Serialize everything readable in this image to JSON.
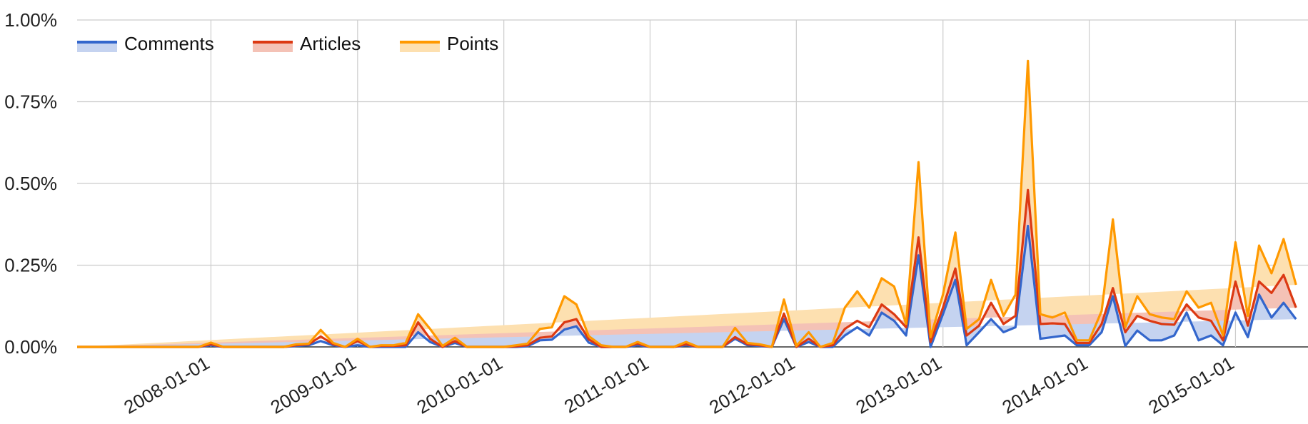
{
  "chart_data": {
    "type": "area",
    "stacked": true,
    "grid": true,
    "legend_position": "top-left",
    "x_tick_labels": [
      "2008-01-01",
      "2009-01-01",
      "2010-01-01",
      "2011-01-01",
      "2012-01-01",
      "2013-01-01",
      "2014-01-01",
      "2015-01-01"
    ],
    "y_tick_labels": [
      "0.00%",
      "0.25%",
      "0.50%",
      "0.75%",
      "1.00%"
    ],
    "y_ticks": [
      0,
      0.25,
      0.5,
      0.75,
      1.0
    ],
    "ylim": [
      0,
      1.0
    ],
    "xlim": [
      "2007-02-01",
      "2015-07-01"
    ],
    "x": [
      "2007-02-01",
      "2007-03-01",
      "2007-04-01",
      "2007-05-01",
      "2007-06-01",
      "2007-07-01",
      "2007-08-01",
      "2007-09-01",
      "2007-10-01",
      "2007-11-01",
      "2007-12-01",
      "2008-01-01",
      "2008-02-01",
      "2008-03-01",
      "2008-04-01",
      "2008-05-01",
      "2008-06-01",
      "2008-07-01",
      "2008-08-01",
      "2008-09-01",
      "2008-10-01",
      "2008-11-01",
      "2008-12-01",
      "2009-01-01",
      "2009-02-01",
      "2009-03-01",
      "2009-04-01",
      "2009-05-01",
      "2009-06-01",
      "2009-07-01",
      "2009-08-01",
      "2009-09-01",
      "2009-10-01",
      "2009-11-01",
      "2009-12-01",
      "2010-01-01",
      "2010-02-01",
      "2010-03-01",
      "2010-04-01",
      "2010-05-01",
      "2010-06-01",
      "2010-07-01",
      "2010-08-01",
      "2010-09-01",
      "2010-10-01",
      "2010-11-01",
      "2010-12-01",
      "2011-01-01",
      "2011-02-01",
      "2011-03-01",
      "2011-04-01",
      "2011-05-01",
      "2011-06-01",
      "2011-07-01",
      "2011-08-01",
      "2011-09-01",
      "2011-10-01",
      "2011-11-01",
      "2011-12-01",
      "2012-01-01",
      "2012-02-01",
      "2012-03-01",
      "2012-04-01",
      "2012-05-01",
      "2012-06-01",
      "2012-07-01",
      "2012-08-01",
      "2012-09-01",
      "2012-10-01",
      "2012-11-01",
      "2012-12-01",
      "2013-01-01",
      "2013-02-01",
      "2013-03-01",
      "2013-04-01",
      "2013-05-01",
      "2013-06-01",
      "2013-07-01",
      "2013-08-01",
      "2013-09-01",
      "2013-10-01",
      "2013-11-01",
      "2013-12-01",
      "2014-01-01",
      "2014-02-01",
      "2014-03-01",
      "2014-04-01",
      "2014-05-01",
      "2014-06-01",
      "2014-07-01",
      "2014-08-01",
      "2014-09-01",
      "2014-10-01",
      "2014-11-01",
      "2014-12-01",
      "2015-01-01",
      "2015-02-01",
      "2015-03-01",
      "2015-04-01",
      "2015-05-01",
      "2015-06-01",
      "2015-07-01"
    ],
    "series": [
      {
        "name": "Comments",
        "color": "#3366cc",
        "fill": "#c5d3f0",
        "cumulative_values": [
          0,
          0,
          0,
          0,
          0,
          0,
          0,
          0,
          0,
          0,
          0,
          0.005,
          0,
          0,
          0,
          0,
          0,
          0,
          0.003,
          0.005,
          0.018,
          0.005,
          0,
          0.005,
          0,
          0,
          0,
          0,
          0.045,
          0.015,
          0,
          0.012,
          0,
          0,
          0,
          0,
          0,
          0.002,
          0.02,
          0.022,
          0.053,
          0.063,
          0.013,
          0,
          0,
          0,
          0.005,
          0,
          0,
          0,
          0.005,
          0,
          0,
          0,
          0.025,
          0.005,
          0.003,
          0,
          0.085,
          0,
          0.015,
          0,
          0,
          0.035,
          0.06,
          0.035,
          0.105,
          0.08,
          0.035,
          0.28,
          0,
          0.1,
          0.205,
          0.005,
          0.045,
          0.085,
          0.045,
          0.06,
          0.37,
          0.025,
          0.03,
          0.035,
          0.005,
          0.005,
          0.045,
          0.155,
          0.003,
          0.05,
          0.02,
          0.02,
          0.035,
          0.105,
          0.02,
          0.035,
          0.005,
          0.105,
          0.03,
          0.16,
          0.09,
          0.135,
          0.085
        ]
      },
      {
        "name": "Articles",
        "color": "#dc3912",
        "fill": "#f4c2b6",
        "cumulative_values": [
          0,
          0,
          0,
          0,
          0,
          0,
          0,
          0,
          0,
          0,
          0,
          0.008,
          0,
          0,
          0,
          0,
          0,
          0,
          0.005,
          0.008,
          0.032,
          0.008,
          0,
          0.018,
          0,
          0.003,
          0.003,
          0.005,
          0.075,
          0.025,
          0,
          0.018,
          0,
          0,
          0,
          0,
          0.002,
          0.005,
          0.028,
          0.032,
          0.075,
          0.085,
          0.023,
          0,
          0,
          0,
          0.01,
          0,
          0,
          0,
          0.008,
          0,
          0,
          0,
          0.03,
          0.008,
          0.005,
          0,
          0.102,
          0,
          0.025,
          0,
          0.005,
          0.055,
          0.08,
          0.06,
          0.13,
          0.1,
          0.06,
          0.335,
          0.015,
          0.12,
          0.24,
          0.035,
          0.065,
          0.135,
          0.07,
          0.095,
          0.48,
          0.07,
          0.072,
          0.07,
          0.012,
          0.012,
          0.07,
          0.18,
          0.045,
          0.095,
          0.08,
          0.07,
          0.068,
          0.13,
          0.09,
          0.08,
          0.02,
          0.2,
          0.065,
          0.2,
          0.165,
          0.22,
          0.12
        ]
      },
      {
        "name": "Points",
        "color": "#ff9900",
        "fill": "#fde0b0",
        "cumulative_values": [
          0,
          0,
          0,
          0,
          0,
          0,
          0,
          0,
          0,
          0,
          0,
          0.013,
          0,
          0,
          0,
          0,
          0,
          0,
          0.008,
          0.01,
          0.052,
          0.012,
          0,
          0.025,
          0,
          0.005,
          0.005,
          0.012,
          0.1,
          0.055,
          0.003,
          0.028,
          0,
          0,
          0,
          0,
          0.005,
          0.01,
          0.055,
          0.06,
          0.155,
          0.13,
          0.033,
          0.005,
          0,
          0,
          0.015,
          0,
          0,
          0,
          0.015,
          0,
          0,
          0,
          0.058,
          0.012,
          0.008,
          0,
          0.145,
          0.003,
          0.045,
          0,
          0.012,
          0.12,
          0.17,
          0.12,
          0.21,
          0.185,
          0.07,
          0.565,
          0.03,
          0.16,
          0.35,
          0.055,
          0.085,
          0.205,
          0.095,
          0.16,
          0.875,
          0.1,
          0.09,
          0.105,
          0.02,
          0.02,
          0.11,
          0.39,
          0.06,
          0.155,
          0.1,
          0.09,
          0.085,
          0.17,
          0.12,
          0.135,
          0.035,
          0.32,
          0.095,
          0.31,
          0.225,
          0.33,
          0.19
        ]
      }
    ]
  }
}
